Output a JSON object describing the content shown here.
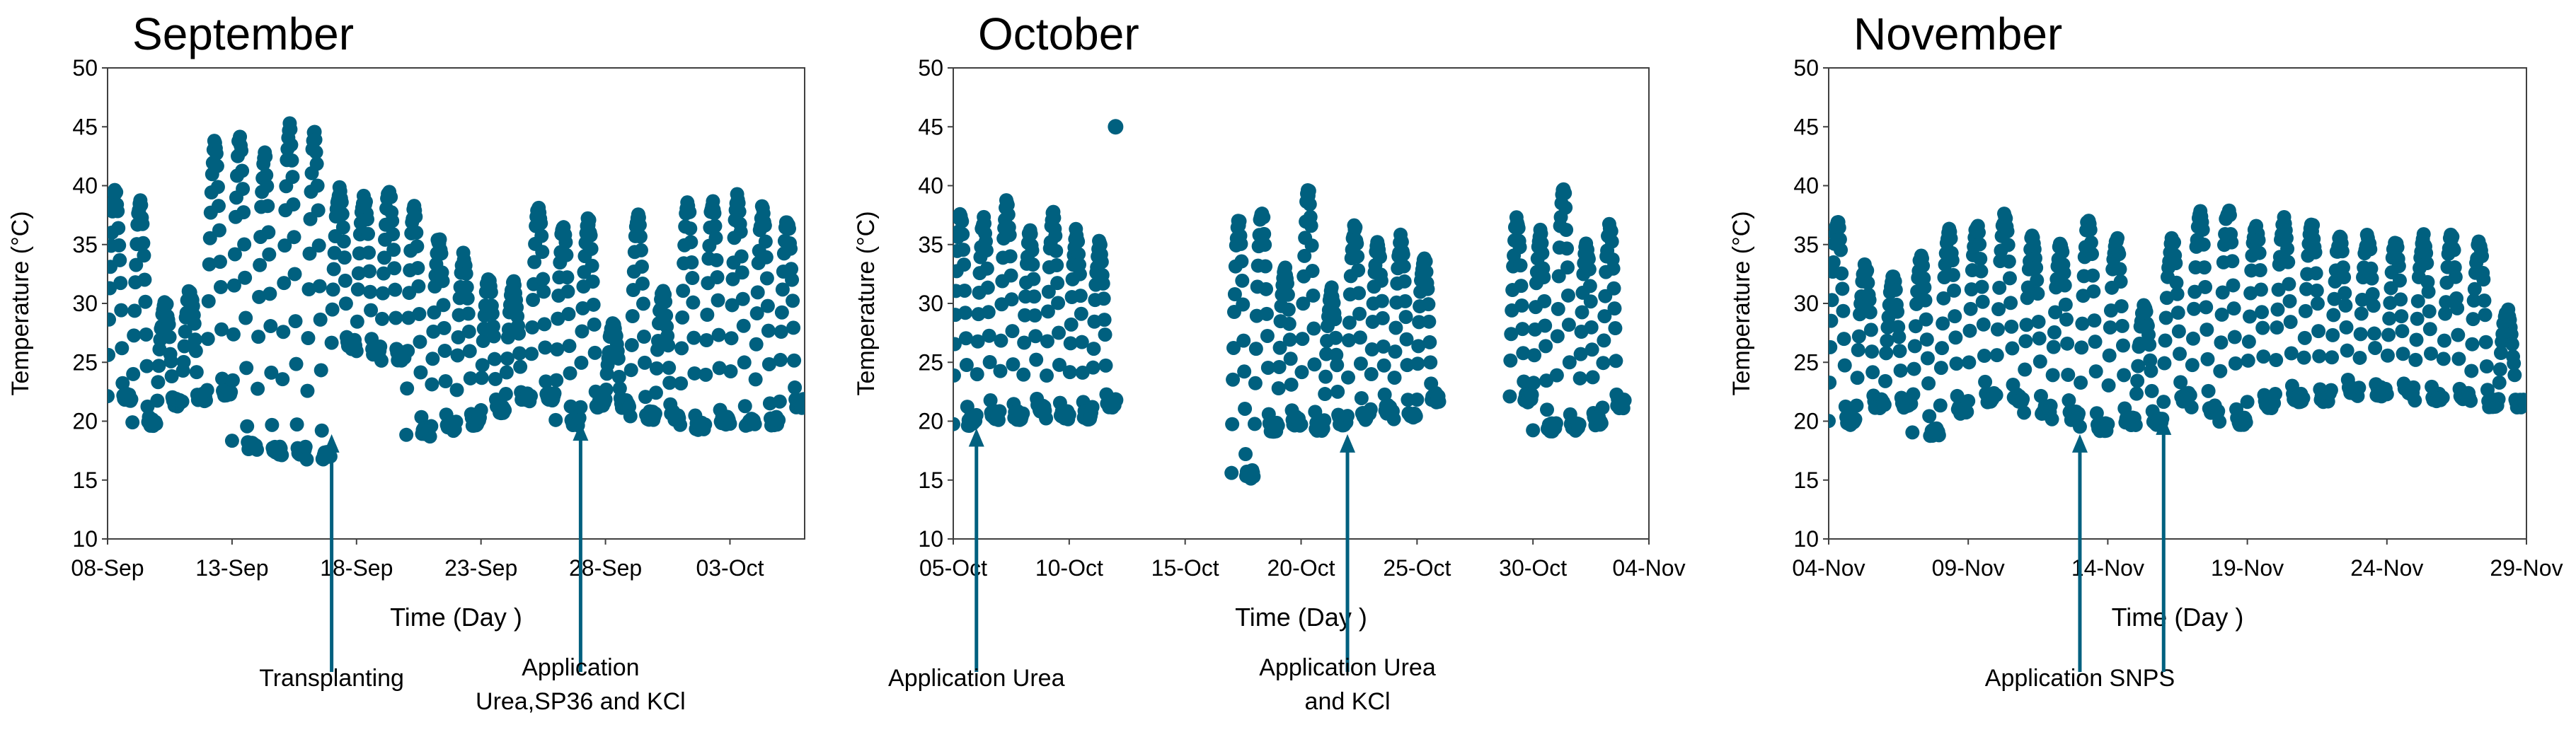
{
  "chart_data": [
    {
      "type": "scatter",
      "title": "September",
      "xlabel": "Time (Day )",
      "ylabel": "Temperature (°C)",
      "ylim": [
        10,
        50
      ],
      "yticks": [
        10,
        15,
        20,
        25,
        30,
        35,
        40,
        45,
        50
      ],
      "xlim": [
        "2023-09-08",
        "2023-10-06"
      ],
      "xticks": [
        "08-Sep",
        "13-Sep",
        "18-Sep",
        "23-Sep",
        "28-Sep",
        "03-Oct"
      ],
      "xtick_dates": [
        "2023-09-08",
        "2023-09-13",
        "2023-09-18",
        "2023-09-23",
        "2023-09-28",
        "2023-10-03"
      ],
      "marker_color": "#00607F",
      "grid": false,
      "series": [
        {
          "daily_cycles": [
            {
              "date": "2023-09-08",
              "min": 22.0,
              "max": 39.5
            },
            {
              "date": "2023-09-09",
              "min": 20.0,
              "max": 38.5
            },
            {
              "date": "2023-09-10",
              "min": 21.5,
              "max": 30.0
            },
            {
              "date": "2023-09-11",
              "min": 22.0,
              "max": 31.0
            },
            {
              "date": "2023-09-12",
              "min": 22.5,
              "max": 43.5
            },
            {
              "date": "2023-09-13",
              "min": 18.0,
              "max": 44.0
            },
            {
              "date": "2023-09-14",
              "min": 17.5,
              "max": 42.5
            },
            {
              "date": "2023-09-15",
              "min": 17.5,
              "max": 45.0
            },
            {
              "date": "2023-09-16",
              "min": 17.0,
              "max": 44.5
            },
            {
              "date": "2023-09-17",
              "min": 26.5,
              "max": 39.5
            },
            {
              "date": "2023-09-18",
              "min": 26.0,
              "max": 39.0
            },
            {
              "date": "2023-09-19",
              "min": 25.5,
              "max": 39.5
            },
            {
              "date": "2023-09-20",
              "min": 19.0,
              "max": 38.0
            },
            {
              "date": "2023-09-21",
              "min": 19.5,
              "max": 35.5
            },
            {
              "date": "2023-09-22",
              "min": 20.0,
              "max": 34.0
            },
            {
              "date": "2023-09-23",
              "min": 21.0,
              "max": 32.0
            },
            {
              "date": "2023-09-24",
              "min": 22.0,
              "max": 31.5
            },
            {
              "date": "2023-09-25",
              "min": 22.0,
              "max": 38.0
            },
            {
              "date": "2023-09-26",
              "min": 20.0,
              "max": 36.5
            },
            {
              "date": "2023-09-27",
              "min": 21.5,
              "max": 37.0
            },
            {
              "date": "2023-09-28",
              "min": 21.5,
              "max": 28.0
            },
            {
              "date": "2023-09-29",
              "min": 20.5,
              "max": 37.5
            },
            {
              "date": "2023-09-30",
              "min": 20.5,
              "max": 31.0
            },
            {
              "date": "2023-10-01",
              "min": 19.5,
              "max": 38.5
            },
            {
              "date": "2023-10-02",
              "min": 20.0,
              "max": 38.5
            },
            {
              "date": "2023-10-03",
              "min": 20.0,
              "max": 39.0
            },
            {
              "date": "2023-10-04",
              "min": 20.0,
              "max": 38.0
            },
            {
              "date": "2023-10-05",
              "min": 21.5,
              "max": 37.0
            }
          ]
        }
      ],
      "annotations": [
        {
          "date": "2023-09-17",
          "y": 19.5,
          "lines": [
            "Transplanting"
          ]
        },
        {
          "date": "2023-09-27",
          "y": 20.5,
          "lines": [
            "Application",
            "Urea,SP36 and KCl"
          ]
        }
      ]
    },
    {
      "type": "scatter",
      "title": "October",
      "xlabel": "Time (Day )",
      "ylabel": "Temperature (°C)",
      "ylim": [
        10,
        50
      ],
      "yticks": [
        10,
        15,
        20,
        25,
        30,
        35,
        40,
        45,
        50
      ],
      "xlim": [
        "2023-10-05",
        "2023-11-04"
      ],
      "xticks": [
        "05-Oct",
        "10-Oct",
        "15-Oct",
        "20-Oct",
        "25-Oct",
        "30-Oct",
        "04-Nov"
      ],
      "xtick_dates": [
        "2023-10-05",
        "2023-10-10",
        "2023-10-15",
        "2023-10-20",
        "2023-10-25",
        "2023-10-30",
        "2023-11-04"
      ],
      "marker_color": "#00607F",
      "grid": false,
      "series": [
        {
          "daily_cycles": [
            {
              "date": "2023-10-05",
              "min": 20.0,
              "max": 37.5
            },
            {
              "date": "2023-10-06",
              "min": 20.5,
              "max": 37.0
            },
            {
              "date": "2023-10-07",
              "min": 20.5,
              "max": 38.5
            },
            {
              "date": "2023-10-08",
              "min": 21.0,
              "max": 36.0
            },
            {
              "date": "2023-10-09",
              "min": 20.5,
              "max": 37.5
            },
            {
              "date": "2023-10-10",
              "min": 20.5,
              "max": 36.0
            },
            {
              "date": "2023-10-11",
              "min": 21.5,
              "max": 35.0
            },
            {
              "date": "2023-10-17",
              "min": 15.5,
              "max": 37.0
            },
            {
              "date": "2023-10-18",
              "min": 19.5,
              "max": 38.0
            },
            {
              "date": "2023-10-19",
              "min": 20.0,
              "max": 33.0
            },
            {
              "date": "2023-10-20",
              "min": 19.5,
              "max": 39.5
            },
            {
              "date": "2023-10-21",
              "min": 20.0,
              "max": 31.0
            },
            {
              "date": "2023-10-22",
              "min": 20.5,
              "max": 36.5
            },
            {
              "date": "2023-10-23",
              "min": 21.0,
              "max": 35.0
            },
            {
              "date": "2023-10-24",
              "min": 20.5,
              "max": 35.5
            },
            {
              "date": "2023-10-25",
              "min": 22.0,
              "max": 34.0
            },
            {
              "date": "2023-10-29",
              "min": 22.0,
              "max": 37.0
            },
            {
              "date": "2023-10-30",
              "min": 19.5,
              "max": 36.0
            },
            {
              "date": "2023-10-31",
              "min": 19.5,
              "max": 40.0
            },
            {
              "date": "2023-11-01",
              "min": 20.0,
              "max": 35.0
            },
            {
              "date": "2023-11-02",
              "min": 21.5,
              "max": 36.5
            }
          ],
          "points": [
            {
              "date": "2023-10-12",
              "y": 45.0
            },
            {
              "date": "2023-10-12",
              "y": 21.8
            }
          ]
        }
      ],
      "annotations": [
        {
          "date": "2023-10-06",
          "y": 20.0,
          "lines": [
            "Application Urea"
          ]
        },
        {
          "date": "2023-10-22",
          "y": 19.5,
          "lines": [
            "Application Urea",
            "and KCl"
          ]
        }
      ]
    },
    {
      "type": "scatter",
      "title": "November",
      "xlabel": "Time (Day )",
      "ylabel": "Temperature (°C)",
      "ylim": [
        10,
        50
      ],
      "yticks": [
        10,
        15,
        20,
        25,
        30,
        35,
        40,
        45,
        50
      ],
      "xlim": [
        "2023-11-04",
        "2023-11-29"
      ],
      "xticks": [
        "04-Nov",
        "09-Nov",
        "14-Nov",
        "19-Nov",
        "24-Nov",
        "29-Nov"
      ],
      "xtick_dates": [
        "2023-11-04",
        "2023-11-09",
        "2023-11-14",
        "2023-11-19",
        "2023-11-24",
        "2023-11-29"
      ],
      "marker_color": "#00607F",
      "grid": false,
      "series": [
        {
          "daily_cycles": [
            {
              "date": "2023-11-04",
              "min": 20.0,
              "max": 37.0
            },
            {
              "date": "2023-11-05",
              "min": 21.5,
              "max": 33.0
            },
            {
              "date": "2023-11-06",
              "min": 21.5,
              "max": 32.0
            },
            {
              "date": "2023-11-07",
              "min": 19.0,
              "max": 34.0
            },
            {
              "date": "2023-11-08",
              "min": 21.0,
              "max": 36.0
            },
            {
              "date": "2023-11-09",
              "min": 22.0,
              "max": 36.5
            },
            {
              "date": "2023-11-10",
              "min": 22.0,
              "max": 37.5
            },
            {
              "date": "2023-11-11",
              "min": 21.0,
              "max": 35.5
            },
            {
              "date": "2023-11-12",
              "min": 20.5,
              "max": 35.0
            },
            {
              "date": "2023-11-13",
              "min": 19.5,
              "max": 37.0
            },
            {
              "date": "2023-11-14",
              "min": 20.0,
              "max": 35.5
            },
            {
              "date": "2023-11-15",
              "min": 20.0,
              "max": 29.5
            },
            {
              "date": "2023-11-16",
              "min": 22.0,
              "max": 35.5
            },
            {
              "date": "2023-11-17",
              "min": 21.0,
              "max": 37.5
            },
            {
              "date": "2023-11-18",
              "min": 20.0,
              "max": 38.0
            },
            {
              "date": "2023-11-19",
              "min": 21.5,
              "max": 36.5
            },
            {
              "date": "2023-11-20",
              "min": 22.0,
              "max": 37.0
            },
            {
              "date": "2023-11-21",
              "min": 22.0,
              "max": 36.5
            },
            {
              "date": "2023-11-22",
              "min": 22.5,
              "max": 35.5
            },
            {
              "date": "2023-11-23",
              "min": 22.5,
              "max": 35.5
            },
            {
              "date": "2023-11-24",
              "min": 22.5,
              "max": 35.0
            },
            {
              "date": "2023-11-25",
              "min": 22.0,
              "max": 35.5
            },
            {
              "date": "2023-11-26",
              "min": 22.0,
              "max": 35.5
            },
            {
              "date": "2023-11-27",
              "min": 21.5,
              "max": 35.0
            },
            {
              "date": "2023-11-28",
              "min": 21.5,
              "max": 29.5
            }
          ]
        }
      ],
      "annotations": [
        {
          "date": "2023-11-13",
          "y": 19.5,
          "lines": [
            "Application SNPS"
          ]
        },
        {
          "date": "2023-11-16",
          "y": 21.0,
          "lines": []
        }
      ]
    }
  ]
}
